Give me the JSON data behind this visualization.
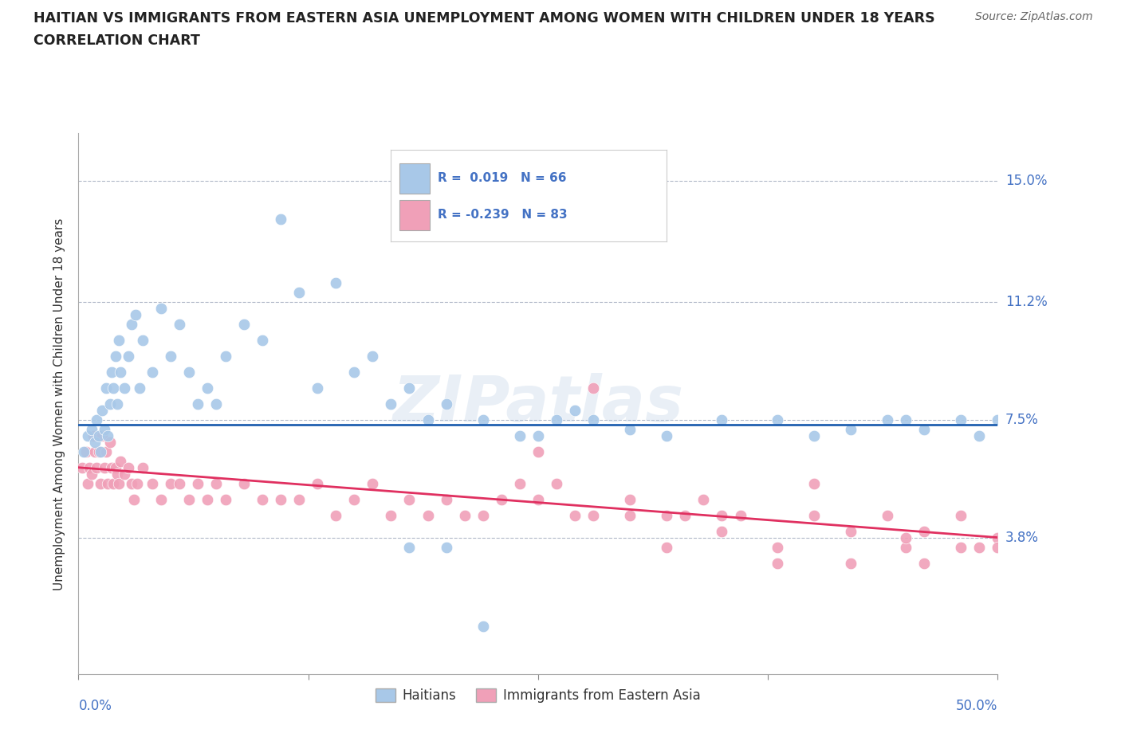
{
  "title_line1": "HAITIAN VS IMMIGRANTS FROM EASTERN ASIA UNEMPLOYMENT AMONG WOMEN WITH CHILDREN UNDER 18 YEARS",
  "title_line2": "CORRELATION CHART",
  "source": "Source: ZipAtlas.com",
  "ylabel": "Unemployment Among Women with Children Under 18 years",
  "xlim": [
    0.0,
    50.0
  ],
  "ylim": [
    -0.5,
    16.5
  ],
  "ytick_vals": [
    3.8,
    7.5,
    11.2,
    15.0
  ],
  "ytick_labels": [
    "3.8%",
    "7.5%",
    "11.2%",
    "15.0%"
  ],
  "r_haitian": 0.019,
  "n_haitian": 66,
  "r_eastern_asia": -0.239,
  "n_eastern_asia": 83,
  "color_haitian": "#a8c8e8",
  "color_eastern_asia": "#f0a0b8",
  "line_color_haitian": "#2060b0",
  "line_color_eastern_asia": "#e03060",
  "legend_label_haitian": "Haitians",
  "legend_label_eastern_asia": "Immigrants from Eastern Asia",
  "watermark": "ZIPatlas",
  "haitian_x": [
    0.3,
    0.5,
    0.7,
    0.9,
    1.0,
    1.1,
    1.2,
    1.3,
    1.4,
    1.5,
    1.6,
    1.7,
    1.8,
    1.9,
    2.0,
    2.1,
    2.2,
    2.3,
    2.5,
    2.7,
    2.9,
    3.1,
    3.3,
    3.5,
    4.0,
    4.5,
    5.0,
    5.5,
    6.0,
    6.5,
    7.0,
    7.5,
    8.0,
    9.0,
    10.0,
    11.0,
    12.0,
    13.0,
    14.0,
    15.0,
    16.0,
    17.0,
    18.0,
    19.0,
    20.0,
    22.0,
    24.0,
    25.0,
    26.0,
    27.0,
    28.0,
    30.0,
    32.0,
    35.0,
    38.0,
    40.0,
    42.0,
    44.0,
    45.0,
    46.0,
    48.0,
    49.0,
    50.0,
    18.0,
    20.0,
    22.0
  ],
  "haitian_y": [
    6.5,
    7.0,
    7.2,
    6.8,
    7.5,
    7.0,
    6.5,
    7.8,
    7.2,
    8.5,
    7.0,
    8.0,
    9.0,
    8.5,
    9.5,
    8.0,
    10.0,
    9.0,
    8.5,
    9.5,
    10.5,
    10.8,
    8.5,
    10.0,
    9.0,
    11.0,
    9.5,
    10.5,
    9.0,
    8.0,
    8.5,
    8.0,
    9.5,
    10.5,
    10.0,
    13.8,
    11.5,
    8.5,
    11.8,
    9.0,
    9.5,
    8.0,
    8.5,
    7.5,
    8.0,
    7.5,
    7.0,
    7.0,
    7.5,
    7.8,
    7.5,
    7.2,
    7.0,
    7.5,
    7.5,
    7.0,
    7.2,
    7.5,
    7.5,
    7.2,
    7.5,
    7.0,
    7.5,
    3.5,
    3.5,
    1.0
  ],
  "eastern_asia_x": [
    0.2,
    0.4,
    0.5,
    0.6,
    0.7,
    0.8,
    0.9,
    1.0,
    1.1,
    1.2,
    1.3,
    1.4,
    1.5,
    1.6,
    1.7,
    1.8,
    1.9,
    2.0,
    2.1,
    2.2,
    2.3,
    2.5,
    2.7,
    2.9,
    3.0,
    3.2,
    3.5,
    4.0,
    4.5,
    5.0,
    5.5,
    6.0,
    6.5,
    7.0,
    7.5,
    8.0,
    9.0,
    10.0,
    11.0,
    12.0,
    13.0,
    14.0,
    15.0,
    16.0,
    17.0,
    18.0,
    19.0,
    20.0,
    21.0,
    22.0,
    23.0,
    24.0,
    25.0,
    26.0,
    27.0,
    28.0,
    30.0,
    32.0,
    33.0,
    34.0,
    35.0,
    36.0,
    38.0,
    40.0,
    42.0,
    44.0,
    45.0,
    46.0,
    48.0,
    49.0,
    50.0,
    25.0,
    30.0,
    35.0,
    40.0,
    45.0,
    48.0,
    50.0,
    28.0,
    32.0,
    38.0,
    42.0,
    46.0
  ],
  "eastern_asia_y": [
    6.0,
    6.5,
    5.5,
    6.0,
    5.8,
    7.0,
    6.5,
    6.0,
    6.5,
    5.5,
    7.0,
    6.0,
    6.5,
    5.5,
    6.8,
    6.0,
    5.5,
    6.0,
    5.8,
    5.5,
    6.2,
    5.8,
    6.0,
    5.5,
    5.0,
    5.5,
    6.0,
    5.5,
    5.0,
    5.5,
    5.5,
    5.0,
    5.5,
    5.0,
    5.5,
    5.0,
    5.5,
    5.0,
    5.0,
    5.0,
    5.5,
    4.5,
    5.0,
    5.5,
    4.5,
    5.0,
    4.5,
    5.0,
    4.5,
    4.5,
    5.0,
    5.5,
    5.0,
    5.5,
    4.5,
    4.5,
    5.0,
    4.5,
    4.5,
    5.0,
    4.0,
    4.5,
    3.5,
    4.5,
    4.0,
    4.5,
    3.5,
    4.0,
    4.5,
    3.5,
    3.8,
    6.5,
    4.5,
    4.5,
    5.5,
    3.8,
    3.5,
    3.5,
    8.5,
    3.5,
    3.0,
    3.0,
    3.0
  ]
}
